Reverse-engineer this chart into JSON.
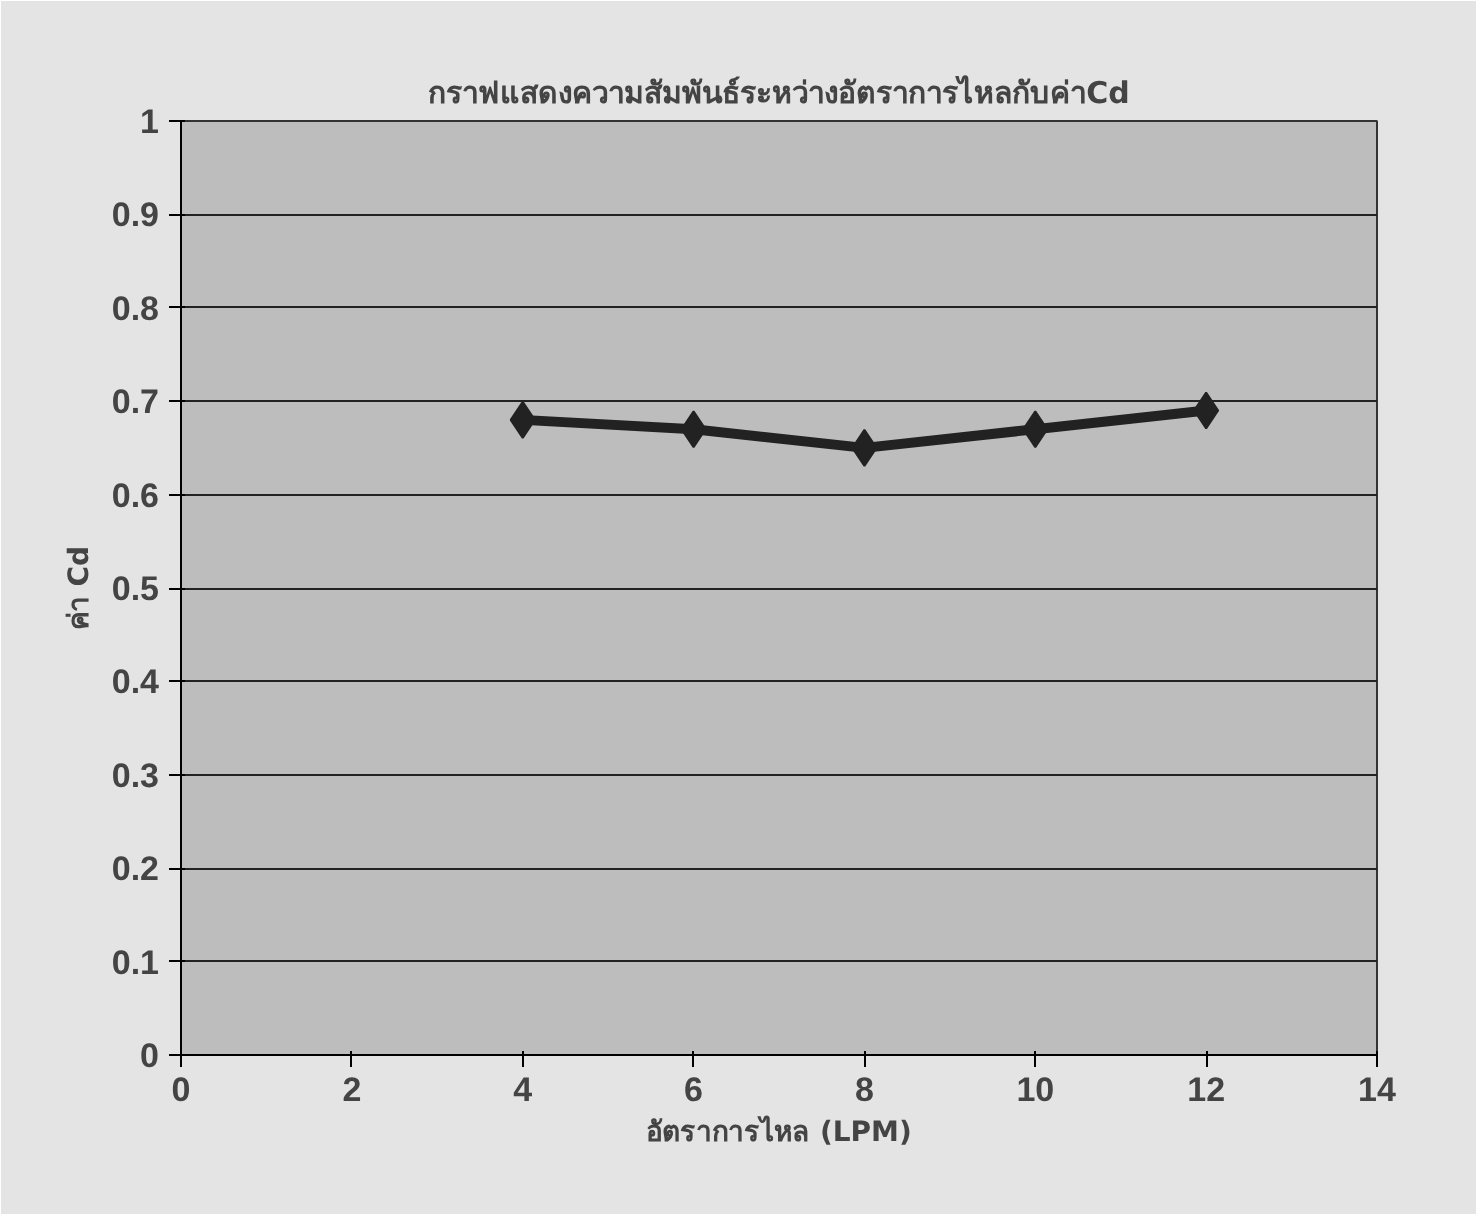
{
  "chart_data": {
    "type": "line",
    "title": "กราฟแสดงความสัมพันธ์ระหว่างอัตราการไหลกับค่าCd",
    "xlabel": "อัตราการไหล (LPM)",
    "ylabel": "ค่า Cd",
    "x": [
      4,
      6,
      8,
      10,
      12
    ],
    "series": [
      {
        "color": "#222222",
        "values": [
          0.68,
          0.67,
          0.65,
          0.67,
          0.69
        ]
      }
    ],
    "xlim": [
      0,
      14
    ],
    "xticks": [
      0,
      2,
      4,
      6,
      8,
      10,
      12,
      14
    ],
    "ylim": [
      0,
      1
    ],
    "yticks": [
      0,
      {
        "value": 0.1,
        "label": "0.1"
      },
      {
        "value": 0.2,
        "label": "0.2"
      },
      {
        "value": 0.3,
        "label": "0.3"
      },
      {
        "value": 0.4,
        "label": "0.4"
      },
      {
        "value": 0.5,
        "label": "0.5"
      },
      {
        "value": 0.6,
        "label": "0.6"
      },
      {
        "value": 0.7,
        "label": "0.7"
      },
      {
        "value": 0.8,
        "label": "0.8"
      },
      {
        "value": 0.9,
        "label": "0.9"
      },
      1
    ],
    "grid": "y",
    "marker": "diamond",
    "line_style": "solid"
  }
}
